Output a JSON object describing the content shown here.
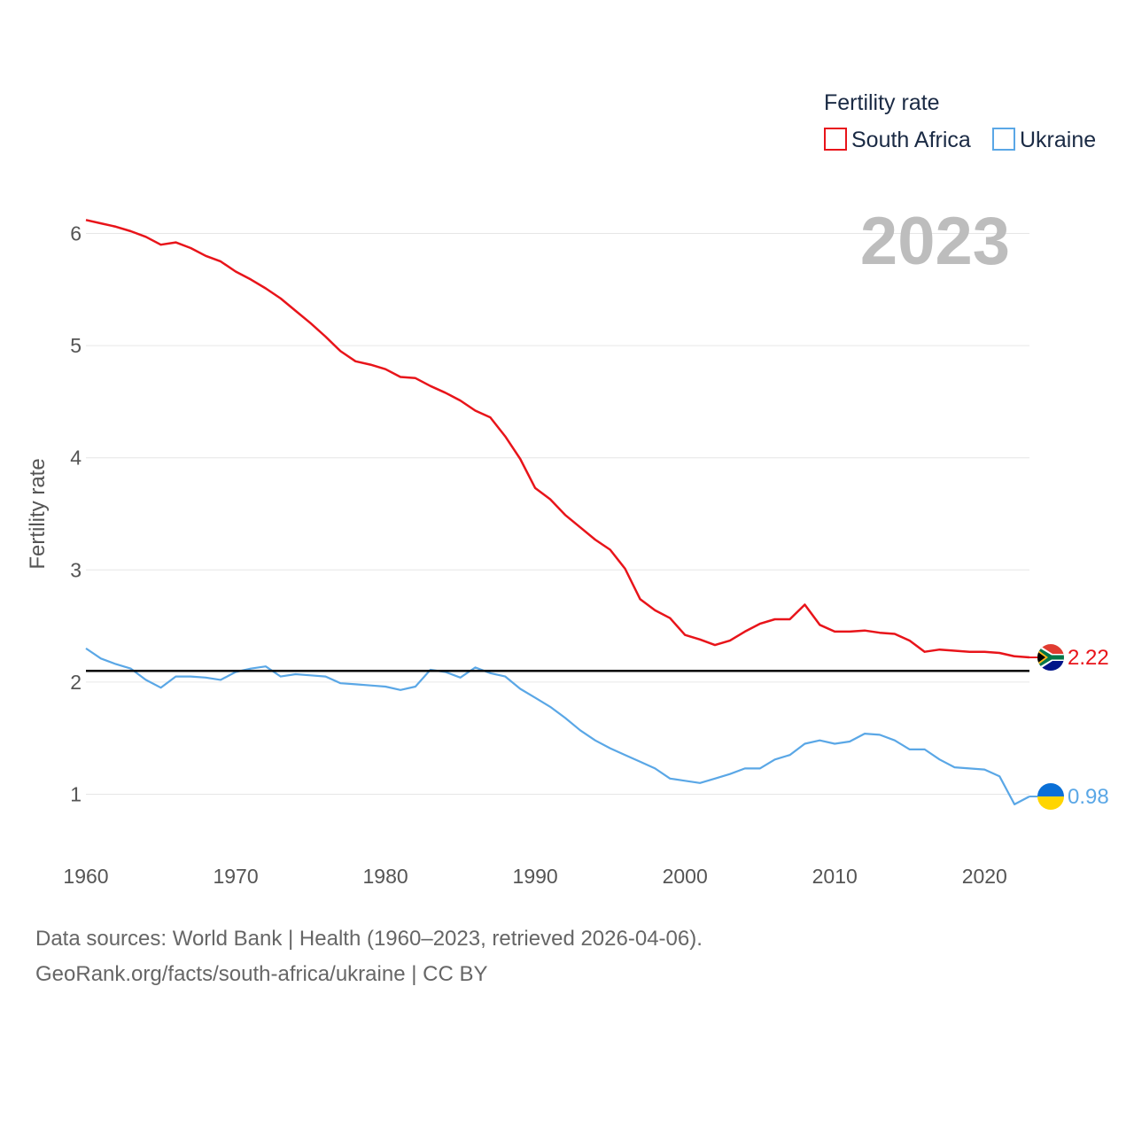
{
  "chart_data": {
    "type": "line",
    "ylabel": "Fertility rate",
    "xlabel": "",
    "xlim": [
      1960,
      2023
    ],
    "ylim": [
      0.5,
      6.6
    ],
    "x_ticks": [
      1960,
      1970,
      1980,
      1990,
      2000,
      2010,
      2020
    ],
    "y_ticks": [
      1,
      2,
      3,
      4,
      5,
      6
    ],
    "year_label": "2023",
    "legend": {
      "title": "Fertility rate",
      "position": "top-right"
    },
    "reference_line": {
      "value": 2.1,
      "color": "#000000"
    },
    "series": [
      {
        "name": "South Africa",
        "color": "#e8141a",
        "end_label": "2.22",
        "flag": "south-africa-flag-icon",
        "points": [
          [
            1960,
            6.12
          ],
          [
            1961,
            6.09
          ],
          [
            1962,
            6.06
          ],
          [
            1963,
            6.02
          ],
          [
            1964,
            5.97
          ],
          [
            1965,
            5.9
          ],
          [
            1966,
            5.92
          ],
          [
            1967,
            5.87
          ],
          [
            1968,
            5.8
          ],
          [
            1969,
            5.75
          ],
          [
            1970,
            5.66
          ],
          [
            1971,
            5.59
          ],
          [
            1972,
            5.51
          ],
          [
            1973,
            5.42
          ],
          [
            1974,
            5.31
          ],
          [
            1975,
            5.2
          ],
          [
            1976,
            5.08
          ],
          [
            1977,
            4.95
          ],
          [
            1978,
            4.86
          ],
          [
            1979,
            4.83
          ],
          [
            1980,
            4.79
          ],
          [
            1981,
            4.72
          ],
          [
            1982,
            4.71
          ],
          [
            1983,
            4.64
          ],
          [
            1984,
            4.58
          ],
          [
            1985,
            4.51
          ],
          [
            1986,
            4.42
          ],
          [
            1987,
            4.36
          ],
          [
            1988,
            4.19
          ],
          [
            1989,
            3.99
          ],
          [
            1990,
            3.73
          ],
          [
            1991,
            3.63
          ],
          [
            1992,
            3.49
          ],
          [
            1993,
            3.38
          ],
          [
            1994,
            3.27
          ],
          [
            1995,
            3.18
          ],
          [
            1996,
            3.01
          ],
          [
            1997,
            2.74
          ],
          [
            1998,
            2.64
          ],
          [
            1999,
            2.57
          ],
          [
            2000,
            2.42
          ],
          [
            2001,
            2.38
          ],
          [
            2002,
            2.33
          ],
          [
            2003,
            2.37
          ],
          [
            2004,
            2.45
          ],
          [
            2005,
            2.52
          ],
          [
            2006,
            2.56
          ],
          [
            2007,
            2.56
          ],
          [
            2008,
            2.69
          ],
          [
            2009,
            2.51
          ],
          [
            2010,
            2.45
          ],
          [
            2011,
            2.45
          ],
          [
            2012,
            2.46
          ],
          [
            2013,
            2.44
          ],
          [
            2014,
            2.43
          ],
          [
            2015,
            2.37
          ],
          [
            2016,
            2.27
          ],
          [
            2017,
            2.29
          ],
          [
            2018,
            2.28
          ],
          [
            2019,
            2.27
          ],
          [
            2020,
            2.27
          ],
          [
            2021,
            2.26
          ],
          [
            2022,
            2.23
          ],
          [
            2023,
            2.22
          ]
        ]
      },
      {
        "name": "Ukraine",
        "color": "#5aa7e6",
        "end_label": "0.98",
        "flag": "ukraine-flag-icon",
        "points": [
          [
            1960,
            2.3
          ],
          [
            1961,
            2.21
          ],
          [
            1962,
            2.16
          ],
          [
            1963,
            2.12
          ],
          [
            1964,
            2.02
          ],
          [
            1965,
            1.95
          ],
          [
            1966,
            2.05
          ],
          [
            1967,
            2.05
          ],
          [
            1968,
            2.04
          ],
          [
            1969,
            2.02
          ],
          [
            1970,
            2.09
          ],
          [
            1971,
            2.12
          ],
          [
            1972,
            2.14
          ],
          [
            1973,
            2.05
          ],
          [
            1974,
            2.07
          ],
          [
            1975,
            2.06
          ],
          [
            1976,
            2.05
          ],
          [
            1977,
            1.99
          ],
          [
            1978,
            1.98
          ],
          [
            1979,
            1.97
          ],
          [
            1980,
            1.96
          ],
          [
            1981,
            1.93
          ],
          [
            1982,
            1.96
          ],
          [
            1983,
            2.11
          ],
          [
            1984,
            2.09
          ],
          [
            1985,
            2.04
          ],
          [
            1986,
            2.13
          ],
          [
            1987,
            2.08
          ],
          [
            1988,
            2.05
          ],
          [
            1989,
            1.94
          ],
          [
            1990,
            1.86
          ],
          [
            1991,
            1.78
          ],
          [
            1992,
            1.68
          ],
          [
            1993,
            1.57
          ],
          [
            1994,
            1.48
          ],
          [
            1995,
            1.41
          ],
          [
            1996,
            1.35
          ],
          [
            1997,
            1.29
          ],
          [
            1998,
            1.23
          ],
          [
            1999,
            1.14
          ],
          [
            2000,
            1.12
          ],
          [
            2001,
            1.1
          ],
          [
            2002,
            1.14
          ],
          [
            2003,
            1.18
          ],
          [
            2004,
            1.23
          ],
          [
            2005,
            1.23
          ],
          [
            2006,
            1.31
          ],
          [
            2007,
            1.35
          ],
          [
            2008,
            1.45
          ],
          [
            2009,
            1.48
          ],
          [
            2010,
            1.45
          ],
          [
            2011,
            1.47
          ],
          [
            2012,
            1.54
          ],
          [
            2013,
            1.53
          ],
          [
            2014,
            1.48
          ],
          [
            2015,
            1.4
          ],
          [
            2016,
            1.4
          ],
          [
            2017,
            1.31
          ],
          [
            2018,
            1.24
          ],
          [
            2019,
            1.23
          ],
          [
            2020,
            1.22
          ],
          [
            2021,
            1.16
          ],
          [
            2022,
            0.91
          ],
          [
            2023,
            0.98
          ]
        ]
      }
    ]
  },
  "footer": {
    "sources": "Data sources: World Bank | Health (1960–2023, retrieved 2026-04-06).",
    "link": "GeoRank.org/facts/south-africa/ukraine",
    "license": " | CC BY"
  },
  "colors": {
    "grid": "#e6e6e6",
    "sa_red": "#e8141a",
    "ukraine_blue": "#5aa7e6"
  }
}
